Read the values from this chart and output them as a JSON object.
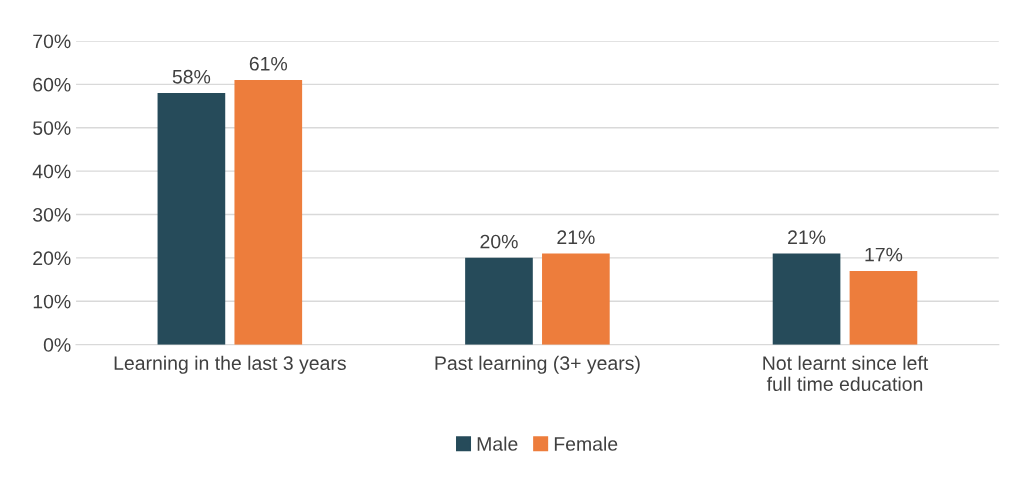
{
  "chart_data": {
    "type": "bar",
    "categories": [
      "Learning in the last 3 years",
      "Past learning (3+ years)",
      "Not learnt since left full time education"
    ],
    "series": [
      {
        "name": "Male",
        "color": "#264b5a",
        "values": [
          58,
          20,
          21
        ],
        "value_labels": [
          "58%",
          "20%",
          "21%"
        ]
      },
      {
        "name": "Female",
        "color": "#ed7d3c",
        "values": [
          61,
          21,
          17
        ],
        "value_labels": [
          "61%",
          "21%",
          "17%"
        ]
      }
    ],
    "ylim": [
      0,
      70
    ],
    "yticks": [
      {
        "value": 0,
        "label": "0%"
      },
      {
        "value": 10,
        "label": "10%"
      },
      {
        "value": 20,
        "label": "20%"
      },
      {
        "value": 30,
        "label": "30%"
      },
      {
        "value": 40,
        "label": "40%"
      },
      {
        "value": 50,
        "label": "50%"
      },
      {
        "value": 60,
        "label": "60%"
      },
      {
        "value": 70,
        "label": "70%"
      }
    ],
    "grid": "y",
    "legend": "bottom"
  }
}
